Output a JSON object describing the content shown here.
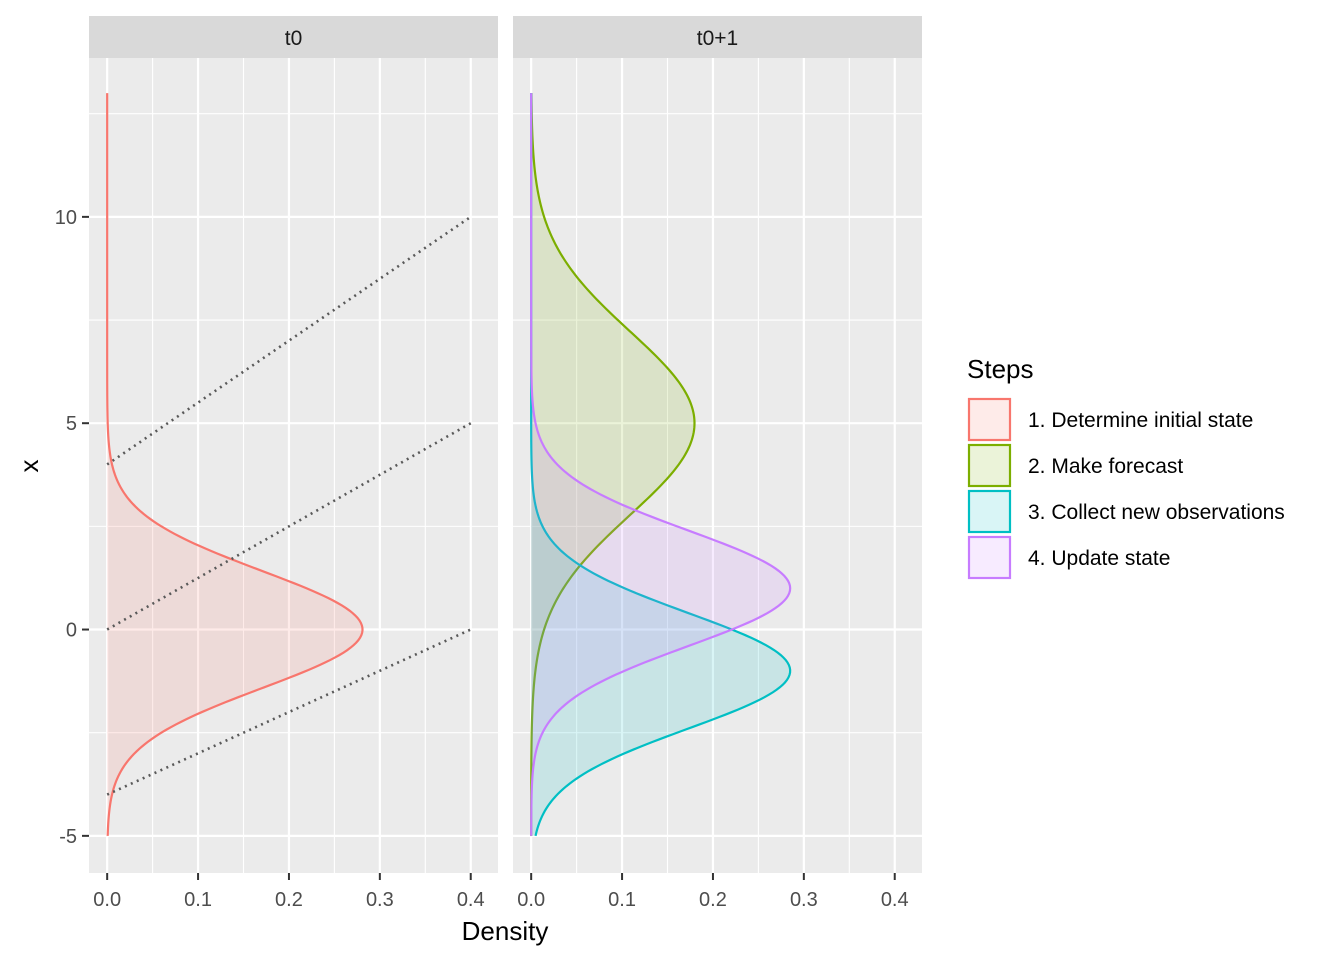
{
  "chart_data": {
    "type": "area",
    "xlabel": "Density",
    "ylabel": "x",
    "xlim": [
      -0.02,
      0.43
    ],
    "ylim": [
      -5.9,
      13.85
    ],
    "x_ticks": [
      0.0,
      0.1,
      0.2,
      0.3,
      0.4
    ],
    "x_tick_labels": [
      "0.0",
      "0.1",
      "0.2",
      "0.3",
      "0.4"
    ],
    "y_ticks": [
      -5,
      0,
      5,
      10
    ],
    "y_tick_labels": [
      "-5",
      "0",
      "5",
      "10"
    ],
    "grid": true,
    "legend": {
      "title": "Steps",
      "placement": "right",
      "entries": [
        {
          "label": "1. Determine initial state",
          "color": "#F8766D"
        },
        {
          "label": "2. Make forecast",
          "color": "#7CAE00"
        },
        {
          "label": "3. Collect new observations",
          "color": "#00BFC4"
        },
        {
          "label": "4. Update state",
          "color": "#C77CFF"
        }
      ]
    },
    "panels": [
      {
        "title": "t0",
        "series": [
          {
            "name": "1. Determine initial state",
            "color": "#F8766D",
            "distribution": "normal",
            "mean": 0.0,
            "sd": 1.42,
            "y_range": [
              -5,
              13
            ]
          }
        ],
        "dotted_lines": [
          {
            "from": [
              0.0,
              4.0
            ],
            "to": [
              0.4,
              10.0
            ]
          },
          {
            "from": [
              0.0,
              0.0
            ],
            "to": [
              0.4,
              5.0
            ]
          },
          {
            "from": [
              0.0,
              -4.0
            ],
            "to": [
              0.4,
              0.0
            ]
          }
        ]
      },
      {
        "title": "t0+1",
        "series": [
          {
            "name": "2. Make forecast",
            "color": "#7CAE00",
            "distribution": "normal",
            "mean": 5.0,
            "sd": 2.22,
            "y_range": [
              -5,
              13
            ]
          },
          {
            "name": "3. Collect new observations",
            "color": "#00BFC4",
            "distribution": "normal",
            "mean": -1.0,
            "sd": 1.4,
            "y_range": [
              -5,
              13
            ]
          },
          {
            "name": "4. Update state",
            "color": "#C77CFF",
            "distribution": "normal",
            "mean": 1.0,
            "sd": 1.4,
            "y_range": [
              -5,
              13
            ]
          }
        ]
      }
    ]
  }
}
